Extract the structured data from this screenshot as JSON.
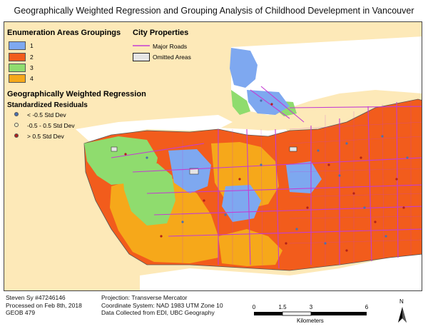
{
  "title": "Geographically Weighted Regression and Grouping Analysis of Childhood Develepment in Vancouver",
  "legend": {
    "groupings_title": "Enumeration Areas Groupings",
    "groupings": [
      {
        "label": "1",
        "color": "#7ea8f0"
      },
      {
        "label": "2",
        "color": "#f25c1c"
      },
      {
        "label": "3",
        "color": "#8fdc6e"
      },
      {
        "label": "4",
        "color": "#f6a81a"
      }
    ],
    "city_title": "City Properties",
    "major_roads": "Major Roads",
    "major_roads_color": "#c43dd2",
    "omitted_areas": "Omitted Areas",
    "gwr_title": "Geographically Weighted Regression",
    "residuals_title": "Standardized Residuals",
    "residuals": [
      {
        "label": "< -0.5 Std Dev",
        "color": "#4a6fb0"
      },
      {
        "label": "-0.5 - 0.5 Std Dev",
        "color": "#fff6c4"
      },
      {
        "label": "> 0.5 Std Dev",
        "color": "#b0201a"
      }
    ]
  },
  "footer": {
    "author": "Steven Sy #47246146",
    "processed": "Processed on Feb 8th, 2018",
    "course": "GEOB 479",
    "projection": "Projection: Transverse Mercator",
    "coordinate_system": "Coordinate System: NAD 1983 UTM Zone 10",
    "data_source": "Data Collected from EDI, UBC Geography"
  },
  "scale_bar": {
    "ticks": [
      "0",
      "1.5",
      "3",
      "6"
    ],
    "unit": "Kilometers"
  },
  "north_arrow": {
    "label": "N",
    "icon": "north-arrow-icon"
  },
  "colors": {
    "land": "#fde9b8",
    "water": "#ffffff"
  }
}
